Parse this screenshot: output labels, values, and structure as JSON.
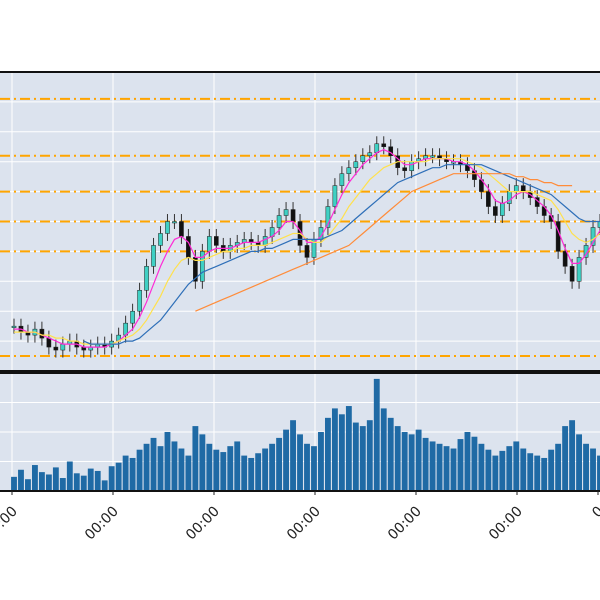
{
  "colors": {
    "background": "#ffffff",
    "panel_background": "#dce3ee",
    "grid": "#ffffff",
    "frame": "#111111",
    "hline": "#ffa500",
    "candle_up": "#3fd0c4",
    "candle_down": "#111111",
    "ma_magenta": "#ff2bd6",
    "ma_yellow": "#ffe14d",
    "ma_blue": "#2e6fb8",
    "ma_orange": "#ff8c3a",
    "volume": "#1f6aa5"
  },
  "chart_data": [
    {
      "type": "candlestick",
      "title": "",
      "xlabel": "",
      "ylabel": "",
      "ylim": [
        0,
        100
      ],
      "grid": true,
      "x_tick_labels": [
        "00:00",
        "00:00",
        "00:00",
        "00:00",
        "00:00",
        "00:00",
        "0"
      ],
      "horizontal_levels": [
        91,
        72,
        60,
        50,
        40,
        5
      ],
      "close": [
        15,
        13,
        12,
        14,
        11,
        8,
        7,
        9,
        10,
        8,
        7,
        8,
        9,
        8,
        10,
        12,
        16,
        20,
        27,
        35,
        42,
        46,
        50,
        50,
        45,
        38,
        30,
        40,
        45,
        42,
        40,
        42,
        43,
        44,
        43,
        42,
        45,
        48,
        52,
        54,
        50,
        42,
        38,
        44,
        48,
        55,
        62,
        66,
        68,
        70,
        72,
        73,
        76,
        75,
        72,
        68,
        67,
        70,
        71,
        72,
        72,
        71,
        70,
        70,
        69,
        67,
        64,
        60,
        55,
        52,
        56,
        60,
        62,
        60,
        58,
        55,
        52,
        50,
        40,
        35,
        30,
        38,
        42,
        48,
        50
      ],
      "series": [
        {
          "name": "",
          "values": [
            14,
            14,
            13,
            13,
            12,
            11,
            10,
            9,
            9,
            9,
            8,
            8,
            8,
            8,
            9,
            10,
            12,
            14,
            18,
            23,
            29,
            35,
            40,
            44,
            45,
            43,
            38,
            38,
            40,
            41,
            41,
            41,
            42,
            43,
            43,
            43,
            44,
            45,
            47,
            50,
            50,
            47,
            43,
            43,
            45,
            49,
            54,
            59,
            63,
            66,
            69,
            71,
            73,
            74,
            73,
            71,
            69,
            69,
            70,
            71,
            71,
            71,
            71,
            70,
            70,
            69,
            67,
            64,
            61,
            57,
            56,
            57,
            59,
            60,
            59,
            57,
            55,
            52,
            47,
            41,
            36,
            36,
            39,
            43,
            47
          ]
        },
        {
          "name": "",
          "values": [
            13,
            13,
            13,
            13,
            12,
            12,
            11,
            11,
            10,
            10,
            9,
            9,
            9,
            9,
            9,
            10,
            11,
            12,
            14,
            17,
            21,
            25,
            30,
            34,
            37,
            38,
            37,
            37,
            38,
            39,
            40,
            40,
            41,
            41,
            42,
            42,
            42,
            43,
            44,
            45,
            46,
            46,
            44,
            43,
            43,
            45,
            48,
            51,
            55,
            58,
            61,
            64,
            66,
            68,
            69,
            70,
            70,
            70,
            70,
            70,
            71,
            71,
            71,
            71,
            71,
            70,
            69,
            68,
            66,
            64,
            62,
            60,
            60,
            60,
            60,
            59,
            58,
            57,
            54,
            50,
            46,
            44,
            43,
            44,
            46
          ]
        },
        {
          "name": "",
          "values": [
            null,
            null,
            null,
            null,
            null,
            null,
            null,
            null,
            null,
            null,
            10,
            9,
            9,
            9,
            9,
            9,
            10,
            10,
            11,
            13,
            15,
            17,
            20,
            23,
            26,
            29,
            31,
            33,
            34,
            35,
            36,
            37,
            38,
            39,
            40,
            40,
            41,
            41,
            42,
            43,
            44,
            44,
            44,
            44,
            44,
            45,
            46,
            47,
            49,
            51,
            53,
            55,
            57,
            59,
            61,
            63,
            64,
            65,
            66,
            67,
            68,
            68,
            69,
            69,
            69,
            69,
            69,
            69,
            68,
            67,
            66,
            65,
            64,
            63,
            62,
            61,
            60,
            59,
            57,
            55,
            53,
            51,
            50,
            50,
            50
          ]
        },
        {
          "name": "",
          "values": [
            null,
            null,
            null,
            null,
            null,
            null,
            null,
            null,
            null,
            null,
            null,
            null,
            null,
            null,
            null,
            null,
            null,
            null,
            null,
            null,
            null,
            null,
            null,
            null,
            null,
            null,
            20,
            21,
            22,
            23,
            24,
            25,
            26,
            27,
            28,
            29,
            30,
            31,
            32,
            33,
            34,
            35,
            36,
            37,
            38,
            39,
            40,
            41,
            42,
            44,
            46,
            48,
            50,
            52,
            54,
            56,
            58,
            60,
            61,
            62,
            63,
            64,
            65,
            66,
            66,
            66,
            66,
            66,
            66,
            66,
            66,
            66,
            65,
            65,
            64,
            64,
            63,
            63,
            62,
            62,
            62
          ]
        }
      ]
    },
    {
      "type": "bar",
      "title": "",
      "xlabel": "",
      "ylabel": "",
      "ylim": [
        0,
        100
      ],
      "grid": true,
      "values": [
        12,
        18,
        10,
        22,
        16,
        14,
        20,
        11,
        25,
        15,
        13,
        19,
        17,
        9,
        21,
        24,
        30,
        28,
        35,
        40,
        45,
        38,
        50,
        42,
        36,
        30,
        55,
        48,
        40,
        35,
        33,
        38,
        42,
        30,
        28,
        32,
        36,
        40,
        45,
        52,
        60,
        48,
        40,
        38,
        50,
        62,
        70,
        65,
        72,
        58,
        55,
        60,
        95,
        70,
        62,
        55,
        50,
        48,
        52,
        45,
        42,
        40,
        38,
        36,
        44,
        50,
        46,
        40,
        35,
        30,
        34,
        38,
        42,
        36,
        32,
        30,
        28,
        35,
        40,
        55,
        60,
        48,
        40,
        36,
        30
      ]
    }
  ]
}
